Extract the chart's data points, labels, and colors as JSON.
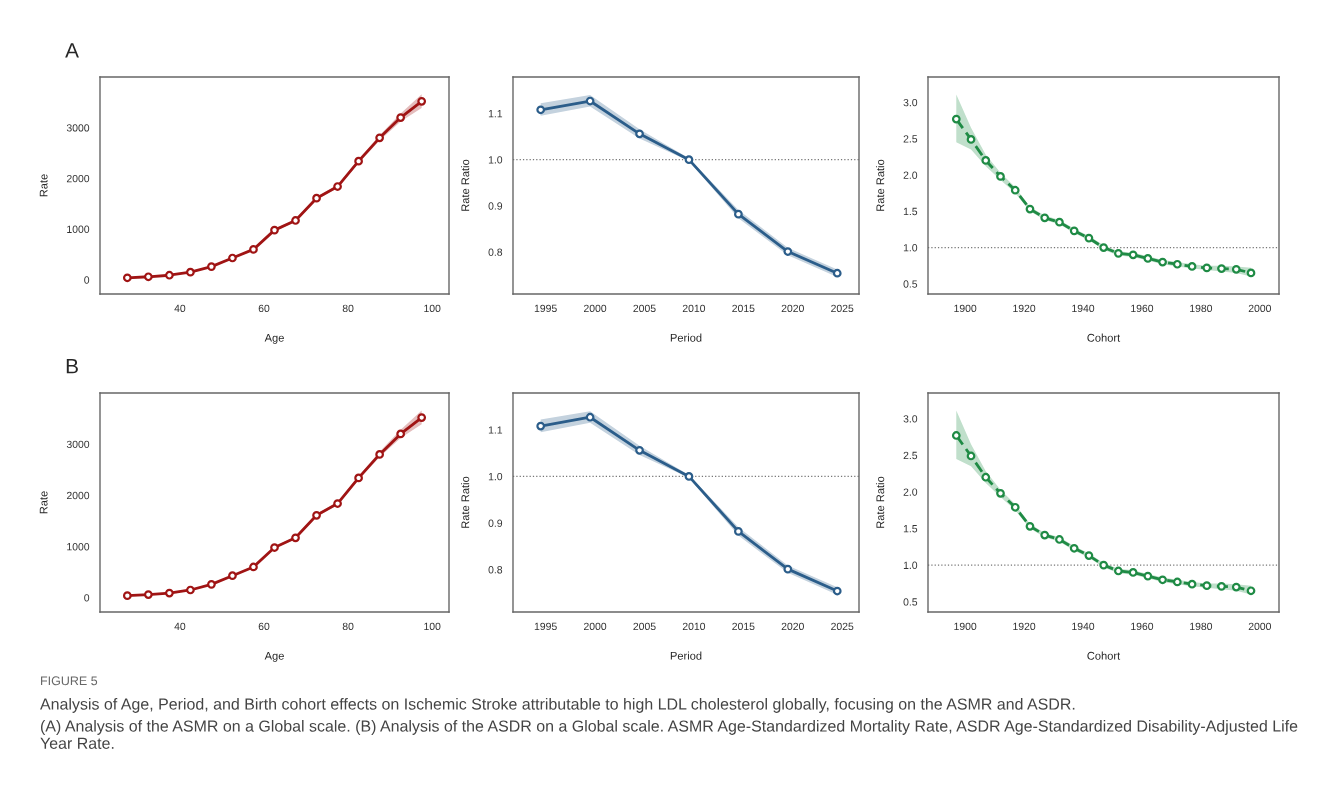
{
  "chart_data": [
    {
      "type": "line",
      "title": "A",
      "xlabel": "Age",
      "ylabel": "Rate",
      "x": [
        27.5,
        32.5,
        37.5,
        42.5,
        47.5,
        52.5,
        57.5,
        62.5,
        67.5,
        72.5,
        77.5,
        82.5,
        87.5,
        92.5,
        97.5
      ],
      "marker": "circle",
      "line_style": "solid",
      "grid": false,
      "series": [
        {
          "color": "#a01414",
          "values": [
            40,
            60,
            90,
            150,
            260,
            430,
            600,
            980,
            1170,
            1610,
            1840,
            2340,
            2800,
            3200,
            3520
          ],
          "lower": [
            30,
            50,
            80,
            140,
            250,
            415,
            585,
            960,
            1145,
            1580,
            1810,
            2300,
            2750,
            3120,
            3390
          ],
          "upper": [
            50,
            70,
            100,
            160,
            270,
            445,
            615,
            1000,
            1195,
            1640,
            1870,
            2380,
            2850,
            3280,
            3660
          ]
        }
      ],
      "xlim": [
        21,
        104
      ],
      "xticks": [
        40,
        60,
        80,
        100
      ],
      "ylim": [
        -280,
        4000
      ],
      "yticks": [
        0,
        1000,
        2000,
        3000
      ]
    },
    {
      "type": "line",
      "xlabel": "Period",
      "ylabel": "Rate Ratio",
      "x": [
        1994.5,
        1999.5,
        2004.5,
        2009.5,
        2014.5,
        2019.5,
        2024.5
      ],
      "marker": "circle",
      "line_style": "solid",
      "grid": false,
      "series": [
        {
          "color": "#2b5d8a",
          "values": [
            1.108,
            1.127,
            1.056,
            1.0,
            0.882,
            0.801,
            0.754
          ],
          "lower": [
            1.095,
            1.115,
            1.046,
            0.997,
            0.873,
            0.793,
            0.746
          ],
          "upper": [
            1.122,
            1.14,
            1.066,
            1.003,
            0.891,
            0.809,
            0.762
          ]
        }
      ],
      "xlim": [
        1991.7,
        2026.7
      ],
      "xticks": [
        1995,
        2000,
        2005,
        2010,
        2015,
        2020,
        2025
      ],
      "ylim": [
        0.709,
        1.179
      ],
      "yticks": [
        0.8,
        0.9,
        {
          "value": 1,
          "label": "1.0"
        },
        1.1
      ],
      "ref_lines": [
        {
          "axis": "y",
          "value": 1.0,
          "line_style": "dotted",
          "color": "#777777"
        }
      ]
    },
    {
      "type": "line",
      "xlabel": "Cohort",
      "ylabel": "Rate Ratio",
      "x": [
        1897,
        1902,
        1907,
        1912,
        1917,
        1922,
        1927,
        1932,
        1937,
        1942,
        1947,
        1952,
        1957,
        1962,
        1967,
        1972,
        1977,
        1982,
        1987,
        1992,
        1997
      ],
      "marker": "circle",
      "line_style": "dashed",
      "grid": false,
      "series": [
        {
          "color": "#1f8b45",
          "values": [
            2.77,
            2.49,
            2.2,
            1.98,
            1.79,
            1.53,
            1.41,
            1.35,
            1.23,
            1.13,
            1.0,
            0.92,
            0.9,
            0.85,
            0.8,
            0.77,
            0.74,
            0.72,
            0.71,
            0.7,
            0.65
          ],
          "lower": [
            2.45,
            2.35,
            2.12,
            1.93,
            1.75,
            1.5,
            1.38,
            1.32,
            1.2,
            1.1,
            0.97,
            0.89,
            0.87,
            0.82,
            0.77,
            0.74,
            0.71,
            0.69,
            0.67,
            0.65,
            0.6
          ],
          "upper": [
            3.11,
            2.65,
            2.28,
            2.03,
            1.83,
            1.56,
            1.44,
            1.38,
            1.26,
            1.16,
            1.03,
            0.95,
            0.93,
            0.88,
            0.83,
            0.8,
            0.77,
            0.75,
            0.75,
            0.74,
            0.72
          ]
        }
      ],
      "xlim": [
        1887.4,
        2006.5
      ],
      "xticks": [
        1900,
        1920,
        1940,
        1960,
        1980,
        2000
      ],
      "ylim": [
        0.36,
        3.35
      ],
      "yticks": [
        0.5,
        {
          "value": 1,
          "label": "1.0"
        },
        1.5,
        {
          "value": 2,
          "label": "2.0"
        },
        2.5,
        {
          "value": 3,
          "label": "3.0"
        }
      ],
      "ref_lines": [
        {
          "axis": "y",
          "value": 1.0,
          "line_style": "dotted",
          "color": "#777777"
        }
      ]
    },
    {
      "type": "line",
      "title": "B",
      "xlabel": "Age",
      "ylabel": "Rate",
      "x": [
        27.5,
        32.5,
        37.5,
        42.5,
        47.5,
        52.5,
        57.5,
        62.5,
        67.5,
        72.5,
        77.5,
        82.5,
        87.5,
        92.5,
        97.5
      ],
      "marker": "circle",
      "line_style": "solid",
      "grid": false,
      "series": [
        {
          "color": "#a01414",
          "values": [
            40,
            60,
            90,
            150,
            260,
            430,
            600,
            980,
            1170,
            1610,
            1840,
            2340,
            2800,
            3200,
            3520
          ],
          "lower": [
            30,
            50,
            80,
            140,
            250,
            415,
            585,
            960,
            1145,
            1580,
            1810,
            2300,
            2750,
            3120,
            3390
          ],
          "upper": [
            50,
            70,
            100,
            160,
            270,
            445,
            615,
            1000,
            1195,
            1640,
            1870,
            2380,
            2850,
            3280,
            3660
          ]
        }
      ],
      "xlim": [
        21,
        104
      ],
      "xticks": [
        40,
        60,
        80,
        100
      ],
      "ylim": [
        -280,
        4000
      ],
      "yticks": [
        0,
        1000,
        2000,
        3000
      ]
    },
    {
      "type": "line",
      "xlabel": "Period",
      "ylabel": "Rate Ratio",
      "x": [
        1994.5,
        1999.5,
        2004.5,
        2009.5,
        2014.5,
        2019.5,
        2024.5
      ],
      "marker": "circle",
      "line_style": "solid",
      "grid": false,
      "series": [
        {
          "color": "#2b5d8a",
          "values": [
            1.108,
            1.127,
            1.056,
            1.0,
            0.882,
            0.801,
            0.754
          ],
          "lower": [
            1.095,
            1.115,
            1.046,
            0.997,
            0.873,
            0.793,
            0.746
          ],
          "upper": [
            1.122,
            1.14,
            1.066,
            1.003,
            0.891,
            0.809,
            0.762
          ]
        }
      ],
      "xlim": [
        1991.7,
        2026.7
      ],
      "xticks": [
        1995,
        2000,
        2005,
        2010,
        2015,
        2020,
        2025
      ],
      "ylim": [
        0.709,
        1.179
      ],
      "yticks": [
        0.8,
        0.9,
        {
          "value": 1,
          "label": "1.0"
        },
        1.1
      ],
      "ref_lines": [
        {
          "axis": "y",
          "value": 1.0,
          "line_style": "dotted",
          "color": "#777777"
        }
      ]
    },
    {
      "type": "line",
      "xlabel": "Cohort",
      "ylabel": "Rate Ratio",
      "x": [
        1897,
        1902,
        1907,
        1912,
        1917,
        1922,
        1927,
        1932,
        1937,
        1942,
        1947,
        1952,
        1957,
        1962,
        1967,
        1972,
        1977,
        1982,
        1987,
        1992,
        1997
      ],
      "marker": "circle",
      "line_style": "dashed",
      "grid": false,
      "series": [
        {
          "color": "#1f8b45",
          "values": [
            2.77,
            2.49,
            2.2,
            1.98,
            1.79,
            1.53,
            1.41,
            1.35,
            1.23,
            1.13,
            1.0,
            0.92,
            0.9,
            0.85,
            0.8,
            0.77,
            0.74,
            0.72,
            0.71,
            0.7,
            0.65
          ],
          "lower": [
            2.45,
            2.35,
            2.12,
            1.93,
            1.75,
            1.5,
            1.38,
            1.32,
            1.2,
            1.1,
            0.97,
            0.89,
            0.87,
            0.82,
            0.77,
            0.74,
            0.71,
            0.69,
            0.67,
            0.65,
            0.6
          ],
          "upper": [
            3.11,
            2.65,
            2.28,
            2.03,
            1.83,
            1.56,
            1.44,
            1.38,
            1.26,
            1.16,
            1.03,
            0.95,
            0.93,
            0.88,
            0.83,
            0.8,
            0.77,
            0.75,
            0.75,
            0.74,
            0.72
          ]
        }
      ],
      "xlim": [
        1887.4,
        2006.5
      ],
      "xticks": [
        1900,
        1920,
        1940,
        1960,
        1980,
        2000
      ],
      "ylim": [
        0.36,
        3.35
      ],
      "yticks": [
        0.5,
        {
          "value": 1,
          "label": "1.0"
        },
        1.5,
        {
          "value": 2,
          "label": "2.0"
        },
        2.5,
        {
          "value": 3,
          "label": "3.0"
        }
      ],
      "ref_lines": [
        {
          "axis": "y",
          "value": 1.0,
          "line_style": "dotted",
          "color": "#777777"
        }
      ],
      "annotations": [
        "FIGURE 5",
        "Analysis of Age, Period, and Birth cohort effects on Ischemic Stroke attributable to high LDL cholesterol globally, focusing on the ASMR and ASDR.",
        "(A) Analysis of the ASMR on a Global scale. (B) Analysis of the ASDR on a Global scale. ASMR Age-Standardized Mortality Rate, ASDR Age-Standardized Disability-Adjusted Life Year Rate."
      ]
    }
  ]
}
